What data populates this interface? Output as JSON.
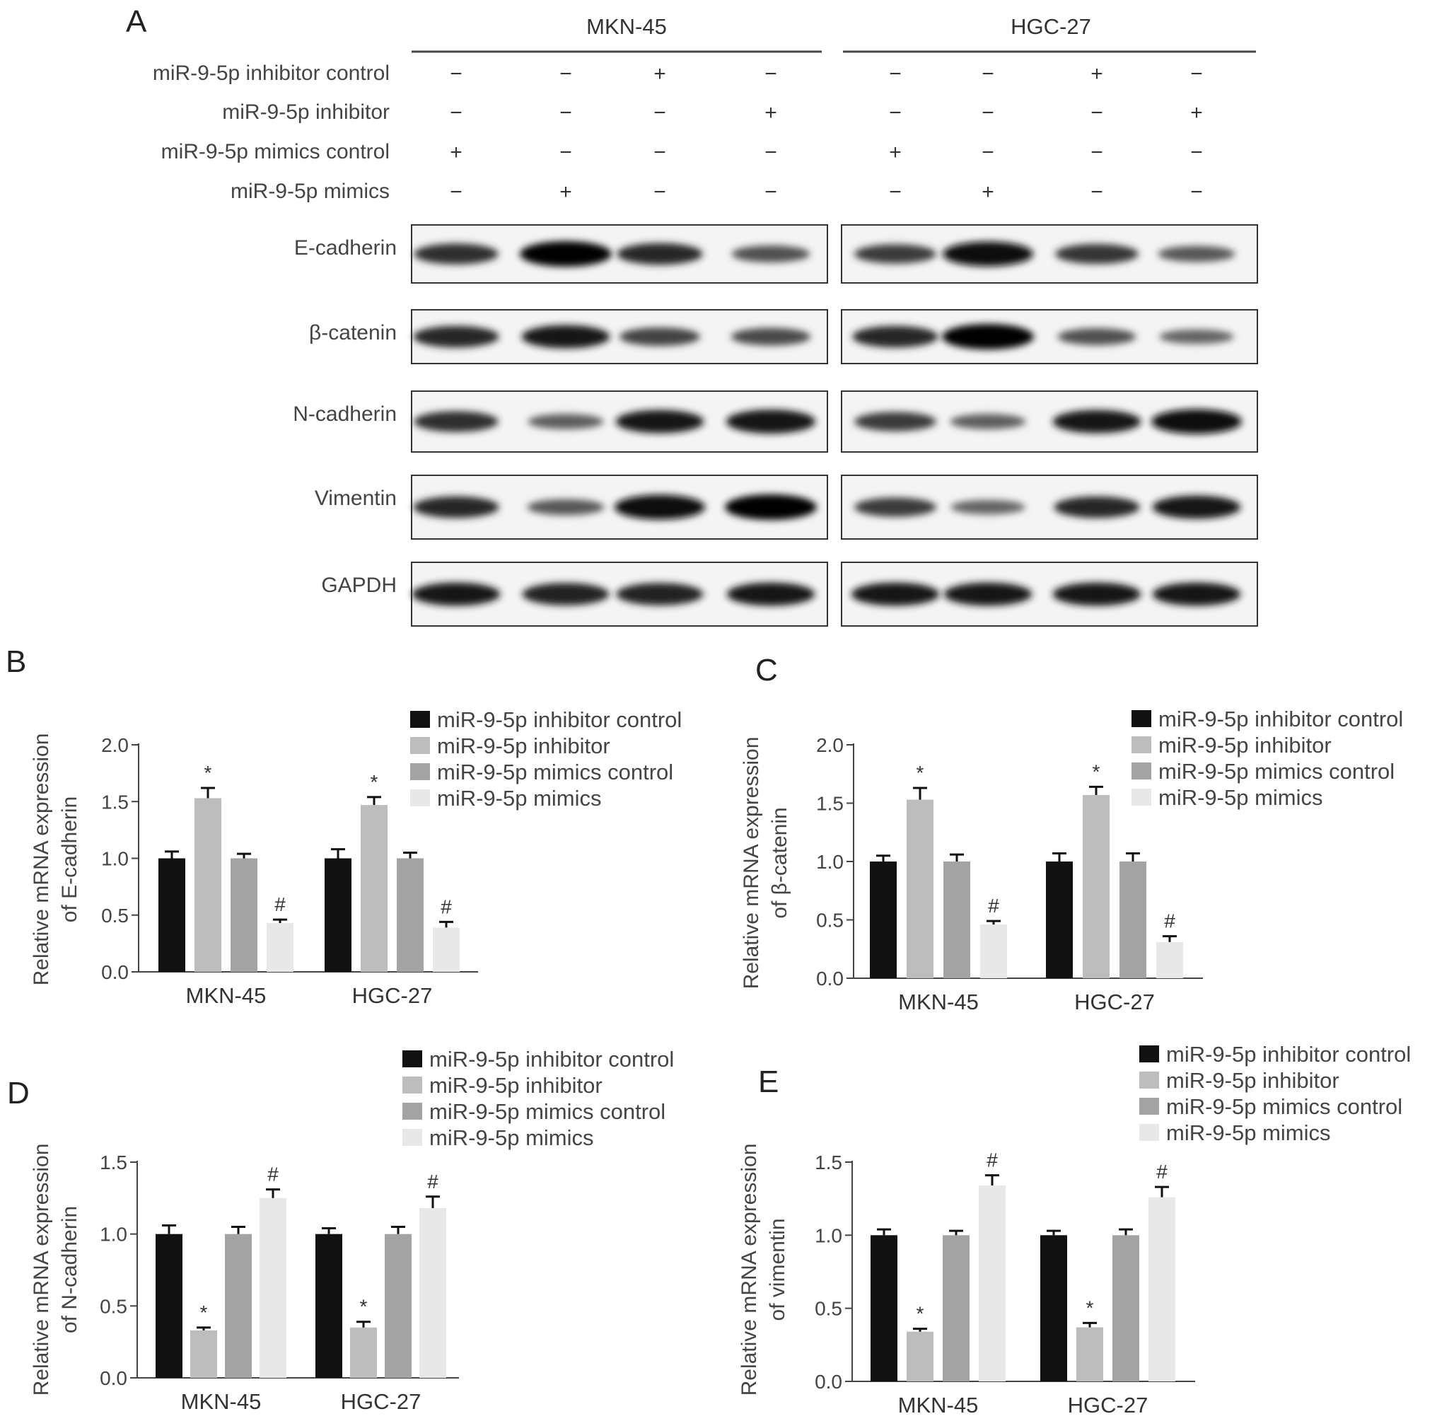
{
  "panel_a": {
    "letter": "A",
    "groups": [
      {
        "name": "MKN-45",
        "signs": [
          [
            "−",
            "−",
            "+",
            "−"
          ],
          [
            "−",
            "−",
            "−",
            "+"
          ],
          [
            "+",
            "−",
            "−",
            "−"
          ],
          [
            "−",
            "+",
            "−",
            "−"
          ]
        ]
      },
      {
        "name": "HGC-27",
        "signs": [
          [
            "−",
            "−",
            "+",
            "−"
          ],
          [
            "−",
            "−",
            "−",
            "+"
          ],
          [
            "+",
            "−",
            "−",
            "−"
          ],
          [
            "−",
            "+",
            "−",
            "−"
          ]
        ]
      }
    ],
    "row_labels": [
      "miR-9-5p inhibitor control",
      "miR-9-5p inhibitor",
      "miR-9-5p mimics control",
      "miR-9-5p mimics"
    ],
    "blots": [
      {
        "label": "E-cadherin",
        "intensity": [
          [
            0.7,
            1.0,
            0.75,
            0.45
          ],
          [
            0.6,
            0.95,
            0.65,
            0.4
          ]
        ]
      },
      {
        "label": "β-catenin",
        "intensity": [
          [
            0.75,
            0.85,
            0.55,
            0.5
          ],
          [
            0.75,
            1.0,
            0.45,
            0.3
          ]
        ]
      },
      {
        "label": "N-cadherin",
        "intensity": [
          [
            0.7,
            0.35,
            0.85,
            0.9
          ],
          [
            0.6,
            0.35,
            0.85,
            0.95
          ]
        ]
      },
      {
        "label": "Vimentin",
        "intensity": [
          [
            0.75,
            0.4,
            0.95,
            1.0
          ],
          [
            0.6,
            0.3,
            0.75,
            0.85
          ]
        ]
      },
      {
        "label": "GAPDH",
        "intensity": [
          [
            0.85,
            0.8,
            0.8,
            0.85
          ],
          [
            0.85,
            0.85,
            0.85,
            0.85
          ]
        ]
      }
    ]
  },
  "legend_entries": [
    "miR-9-5p inhibitor control",
    "miR-9-5p inhibitor",
    "miR-9-5p mimics control",
    "miR-9-5p mimics"
  ],
  "colors": [
    "#111111",
    "#bdbdbd",
    "#a3a3a3",
    "#e8e8e8"
  ],
  "chart_data": [
    {
      "panel": "B",
      "type": "bar",
      "categories": [
        "MKN-45",
        "HGC-27"
      ],
      "ylabel": [
        "Relative mRNA expression",
        "of E-cadherin"
      ],
      "ylim": [
        0,
        2.0
      ],
      "yticks": [
        "0.0",
        "0.5",
        "1.0",
        "1.5",
        "2.0"
      ],
      "series": [
        {
          "name": "miR-9-5p inhibitor control",
          "values": [
            1.0,
            1.0
          ],
          "errors": [
            0.06,
            0.08
          ],
          "marks": [
            "",
            ""
          ]
        },
        {
          "name": "miR-9-5p inhibitor",
          "values": [
            1.53,
            1.47
          ],
          "errors": [
            0.09,
            0.07
          ],
          "marks": [
            "*",
            "*"
          ]
        },
        {
          "name": "miR-9-5p mimics control",
          "values": [
            1.0,
            1.0
          ],
          "errors": [
            0.04,
            0.05
          ],
          "marks": [
            "",
            ""
          ]
        },
        {
          "name": "miR-9-5p mimics",
          "values": [
            0.43,
            0.39
          ],
          "errors": [
            0.03,
            0.05
          ],
          "marks": [
            "#",
            "#"
          ]
        }
      ]
    },
    {
      "panel": "C",
      "type": "bar",
      "categories": [
        "MKN-45",
        "HGC-27"
      ],
      "ylabel": [
        "Relative mRNA expression",
        "of  β-catenin"
      ],
      "ylim": [
        0,
        2.0
      ],
      "yticks": [
        "0.0",
        "0.5",
        "1.0",
        "1.5",
        "2.0"
      ],
      "series": [
        {
          "name": "miR-9-5p inhibitor control",
          "values": [
            1.0,
            1.0
          ],
          "errors": [
            0.05,
            0.07
          ],
          "marks": [
            "",
            ""
          ]
        },
        {
          "name": "miR-9-5p inhibitor",
          "values": [
            1.53,
            1.57
          ],
          "errors": [
            0.1,
            0.07
          ],
          "marks": [
            "*",
            "*"
          ]
        },
        {
          "name": "miR-9-5p mimics control",
          "values": [
            1.0,
            1.0
          ],
          "errors": [
            0.06,
            0.07
          ],
          "marks": [
            "",
            ""
          ]
        },
        {
          "name": "miR-9-5p mimics",
          "values": [
            0.46,
            0.31
          ],
          "errors": [
            0.03,
            0.05
          ],
          "marks": [
            "#",
            "#"
          ]
        }
      ]
    },
    {
      "panel": "D",
      "type": "bar",
      "categories": [
        "MKN-45",
        "HGC-27"
      ],
      "ylabel": [
        "Relative mRNA expression",
        "of N-cadherin"
      ],
      "ylim": [
        0,
        1.5
      ],
      "yticks": [
        "0.0",
        "0.5",
        "1.0",
        "1.5"
      ],
      "series": [
        {
          "name": "miR-9-5p inhibitor control",
          "values": [
            1.0,
            1.0
          ],
          "errors": [
            0.06,
            0.04
          ],
          "marks": [
            "",
            ""
          ]
        },
        {
          "name": "miR-9-5p inhibitor",
          "values": [
            0.33,
            0.35
          ],
          "errors": [
            0.02,
            0.04
          ],
          "marks": [
            "*",
            "*"
          ]
        },
        {
          "name": "miR-9-5p mimics control",
          "values": [
            1.0,
            1.0
          ],
          "errors": [
            0.05,
            0.05
          ],
          "marks": [
            "",
            ""
          ]
        },
        {
          "name": "miR-9-5p mimics",
          "values": [
            1.25,
            1.18
          ],
          "errors": [
            0.06,
            0.08
          ],
          "marks": [
            "#",
            "#"
          ]
        }
      ]
    },
    {
      "panel": "E",
      "type": "bar",
      "categories": [
        "MKN-45",
        "HGC-27"
      ],
      "ylabel": [
        "Relative mRNA expression",
        "of  vimentin"
      ],
      "ylim": [
        0,
        1.5
      ],
      "yticks": [
        "0.0",
        "0.5",
        "1.0",
        "1.5"
      ],
      "series": [
        {
          "name": "miR-9-5p inhibitor control",
          "values": [
            1.0,
            1.0
          ],
          "errors": [
            0.04,
            0.03
          ],
          "marks": [
            "",
            ""
          ]
        },
        {
          "name": "miR-9-5p inhibitor",
          "values": [
            0.34,
            0.37
          ],
          "errors": [
            0.02,
            0.03
          ],
          "marks": [
            "*",
            "*"
          ]
        },
        {
          "name": "miR-9-5p mimics control",
          "values": [
            1.0,
            1.0
          ],
          "errors": [
            0.03,
            0.04
          ],
          "marks": [
            "",
            ""
          ]
        },
        {
          "name": "miR-9-5p mimics",
          "values": [
            1.34,
            1.26
          ],
          "errors": [
            0.07,
            0.07
          ],
          "marks": [
            "#",
            "#"
          ]
        }
      ]
    }
  ]
}
